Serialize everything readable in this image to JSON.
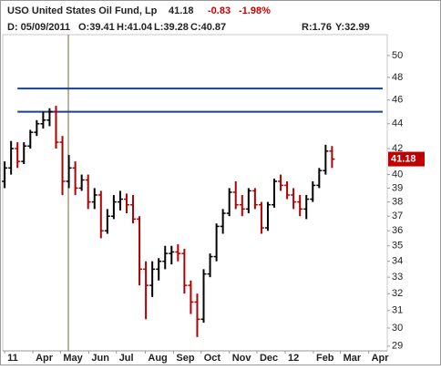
{
  "chart_data": {
    "type": "ohlc",
    "title": "USO United States Oil Fund, Lp",
    "last": 41.18,
    "change": "-0.83",
    "change_pct": "-1.98%",
    "info": [
      "D: 05/09/2011",
      "O:39.41",
      "H:41.04",
      "L:39.28",
      "C:40.87"
    ],
    "info_right": [
      "R:1.76",
      "Y:32.99"
    ],
    "x": [
      0,
      1,
      2,
      3,
      4,
      5,
      6,
      7,
      8,
      9,
      10,
      11,
      12,
      13,
      14,
      15,
      16,
      17,
      18,
      19,
      20,
      21,
      22,
      23,
      24,
      25,
      26,
      27,
      28,
      29,
      30,
      31,
      32,
      33,
      34,
      35,
      36,
      37,
      38,
      39,
      40,
      41,
      42,
      43,
      44,
      45,
      46,
      47,
      48,
      49,
      50,
      51
    ],
    "open": [
      39.5,
      40.5,
      42,
      41,
      42.2,
      43.3,
      44,
      44.3,
      45,
      42.5,
      39.5,
      40.5,
      39,
      39.6,
      38,
      38.5,
      36,
      37,
      38,
      38.2,
      37.8,
      36.8,
      33.5,
      32.5,
      33.5,
      34,
      34.5,
      34.6,
      34.5,
      32.5,
      31.5,
      30.5,
      33.2,
      34.3,
      36.3,
      37.2,
      38.7,
      37.8,
      37.5,
      38.8,
      37.8,
      36.2,
      37.8,
      39.5,
      39.2,
      38.5,
      38,
      37.5,
      38.2,
      39.2,
      40.3,
      41.8
    ],
    "high": [
      41,
      42.6,
      42.5,
      42.5,
      43.5,
      44.3,
      45,
      45.3,
      45.5,
      43,
      41.5,
      41,
      40,
      40,
      39,
      38.8,
      37.5,
      38.5,
      38.8,
      38.6,
      38.5,
      37,
      34,
      34,
      34.2,
      35,
      35,
      35.1,
      34.8,
      32.8,
      32,
      33.5,
      34.5,
      36.5,
      37.5,
      39,
      39.5,
      38.5,
      39,
      39,
      38,
      38,
      39.7,
      40,
      39.5,
      39,
      38.5,
      38.5,
      39.5,
      40.5,
      42.3,
      42.2
    ],
    "low": [
      39,
      40,
      40.5,
      40.8,
      42,
      43,
      43.6,
      43.8,
      42,
      38.5,
      39,
      38.5,
      38.8,
      37.5,
      37.5,
      35.5,
      35.8,
      36.8,
      37.4,
      37.2,
      36.5,
      32.5,
      30.5,
      31.8,
      32.8,
      33.5,
      33.8,
      34,
      32,
      30.8,
      29.5,
      30.3,
      33,
      34,
      35.8,
      37,
      37.5,
      37,
      37.2,
      37.5,
      35.8,
      36,
      37.6,
      38.8,
      38.2,
      37.5,
      37,
      36.8,
      38,
      39,
      40,
      40.5
    ],
    "close": [
      40.5,
      42,
      41,
      42.2,
      43.3,
      44,
      44.3,
      45,
      42.5,
      39.5,
      40.5,
      39,
      39.6,
      38,
      38.5,
      36,
      37,
      38,
      38.2,
      37.8,
      36.8,
      33.5,
      32.5,
      33.5,
      34,
      34.5,
      34.6,
      34.5,
      32.5,
      31.5,
      30.5,
      33.2,
      34.3,
      36.3,
      37.2,
      38.7,
      37.8,
      37.5,
      38.8,
      37.8,
      36.2,
      37.8,
      39.5,
      39.2,
      38.5,
      38,
      37.5,
      38.2,
      39.2,
      40.3,
      41.8,
      41.18
    ],
    "up_color": "#000000",
    "down_color": "#b00000",
    "hlines": [
      47,
      45
    ],
    "hline_color": "#1f3f8f",
    "log_scale": true,
    "ylim": [
      28.5,
      52
    ],
    "yticks": [
      29,
      30,
      31,
      32,
      33,
      34,
      35,
      36,
      37,
      38,
      39,
      40,
      42,
      44,
      46,
      48,
      50
    ],
    "xlim": [
      -0.3,
      59.6
    ],
    "xticks": [
      {
        "value": 0,
        "label": "11"
      },
      {
        "value": 4.4,
        "label": "Apr"
      },
      {
        "value": 8.7,
        "label": "May"
      },
      {
        "value": 13.1,
        "label": "Jun"
      },
      {
        "value": 17.4,
        "label": "Jul"
      },
      {
        "value": 21.9,
        "label": "Aug"
      },
      {
        "value": 26.3,
        "label": "Sep"
      },
      {
        "value": 30.6,
        "label": "Oct"
      },
      {
        "value": 35,
        "label": "Nov"
      },
      {
        "value": 39.3,
        "label": "Dec"
      },
      {
        "value": 43.7,
        "label": "12"
      },
      {
        "value": 48.1,
        "label": "Feb"
      },
      {
        "value": 52.3,
        "label": "Mar"
      },
      {
        "value": 56.7,
        "label": "Apr"
      }
    ]
  }
}
